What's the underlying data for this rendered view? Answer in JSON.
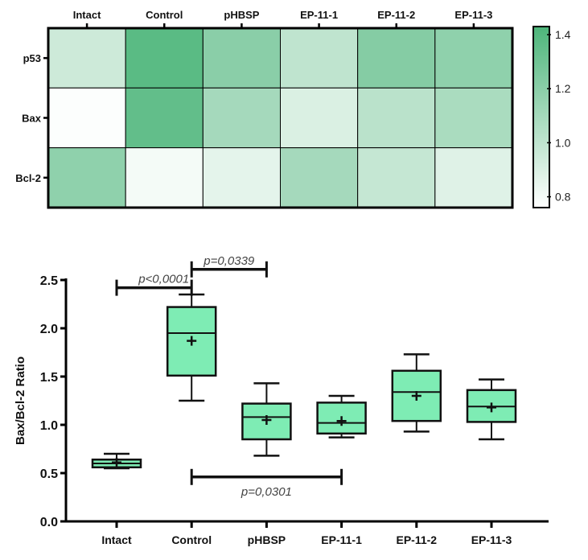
{
  "chart_data": [
    {
      "type": "heatmap",
      "columns": [
        "Intact",
        "Control",
        "pHBSP",
        "EP-11-1",
        "EP-11-2",
        "EP-11-3"
      ],
      "rows": [
        "p53",
        "Bax",
        "Bcl-2"
      ],
      "values": [
        [
          0.95,
          1.38,
          1.2,
          1.0,
          1.22,
          1.18
        ],
        [
          0.77,
          1.35,
          1.1,
          0.9,
          1.02,
          1.08
        ],
        [
          1.18,
          0.8,
          0.86,
          1.1,
          0.98,
          0.88
        ]
      ],
      "colorbar": {
        "min": 0.76,
        "max": 1.43,
        "ticks": [
          "0.8",
          "1.0",
          "1.2",
          "1.4"
        ],
        "low_color": "#ffffff",
        "high_color": "#4db57a"
      }
    },
    {
      "type": "box",
      "categories": [
        "Intact",
        "Control",
        "pHBSP",
        "EP-11-1",
        "EP-11-2",
        "EP-11-3"
      ],
      "ylabel": "Bax/Bcl-2 Ratio",
      "ylim": [
        0,
        2.5
      ],
      "yticks": [
        "0.0",
        "0.5",
        "1.0",
        "1.5",
        "2.0",
        "2.5"
      ],
      "box_color": "#7eecb4",
      "boxes": [
        {
          "min": 0.55,
          "q1": 0.56,
          "median": 0.6,
          "q3": 0.64,
          "max": 0.7,
          "mean": 0.61
        },
        {
          "min": 1.25,
          "q1": 1.51,
          "median": 1.95,
          "q3": 2.22,
          "max": 2.35,
          "mean": 1.87
        },
        {
          "min": 0.68,
          "q1": 0.85,
          "median": 1.08,
          "q3": 1.22,
          "max": 1.43,
          "mean": 1.05
        },
        {
          "min": 0.87,
          "q1": 0.91,
          "median": 1.02,
          "q3": 1.23,
          "max": 1.3,
          "mean": 1.04
        },
        {
          "min": 0.93,
          "q1": 1.04,
          "median": 1.34,
          "q3": 1.56,
          "max": 1.73,
          "mean": 1.3
        },
        {
          "min": 0.85,
          "q1": 1.03,
          "median": 1.19,
          "q3": 1.36,
          "max": 1.47,
          "mean": 1.18
        }
      ],
      "annotations": [
        {
          "text": "p<0,0001",
          "from": 0,
          "to": 1,
          "y": 2.42
        },
        {
          "text": "p=0,0339",
          "from": 1,
          "to": 2,
          "y": 2.61
        },
        {
          "text": "p=0,0301",
          "from": 1,
          "to": 3,
          "y": 0.46
        }
      ]
    }
  ]
}
